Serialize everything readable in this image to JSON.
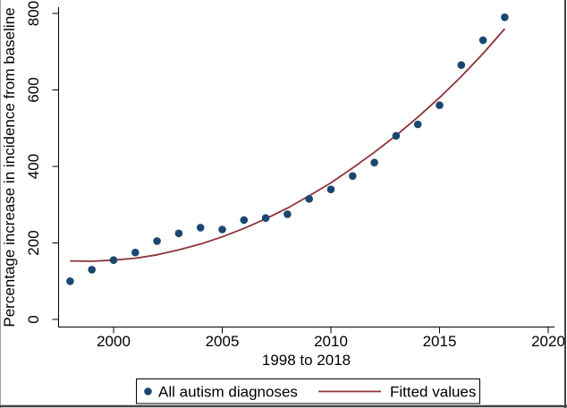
{
  "chart_data": {
    "type": "scatter",
    "title": "",
    "xlabel": "1998 to 2018",
    "ylabel": "Percentage increase in incidence from baseline",
    "x": [
      1998,
      1999,
      2000,
      2001,
      2002,
      2003,
      2004,
      2005,
      2006,
      2007,
      2008,
      2009,
      2010,
      2011,
      2012,
      2013,
      2014,
      2015,
      2016,
      2017,
      2018
    ],
    "series": [
      {
        "name": "All autism diagnoses",
        "type": "scatter",
        "color": "#1a476f",
        "values": [
          100,
          130,
          155,
          175,
          205,
          225,
          240,
          235,
          260,
          265,
          275,
          315,
          340,
          375,
          410,
          480,
          510,
          560,
          665,
          730,
          790
        ]
      },
      {
        "name": "Fitted values",
        "type": "line",
        "color": "#8e3339",
        "values": [
          153,
          152,
          155,
          160,
          169,
          182,
          197,
          216,
          238,
          263,
          291,
          323,
          357,
          396,
          437,
          481,
          529,
          580,
          635,
          695,
          760
        ]
      }
    ],
    "xlim": [
      1997.5,
      2020.3
    ],
    "ylim": [
      0,
      800
    ],
    "x_ticks": [
      2000,
      2005,
      2010,
      2015,
      2020
    ],
    "y_ticks": [
      0,
      200,
      400,
      600,
      800
    ],
    "grid": false,
    "legend_position": "bottom-center"
  },
  "colors": {
    "dot": "#1a476f",
    "fit_line": "#8e3339",
    "axis": "#000000",
    "background": "#ffffff",
    "border_dark": "#3e4347",
    "border_light": "#9aa0a4"
  }
}
